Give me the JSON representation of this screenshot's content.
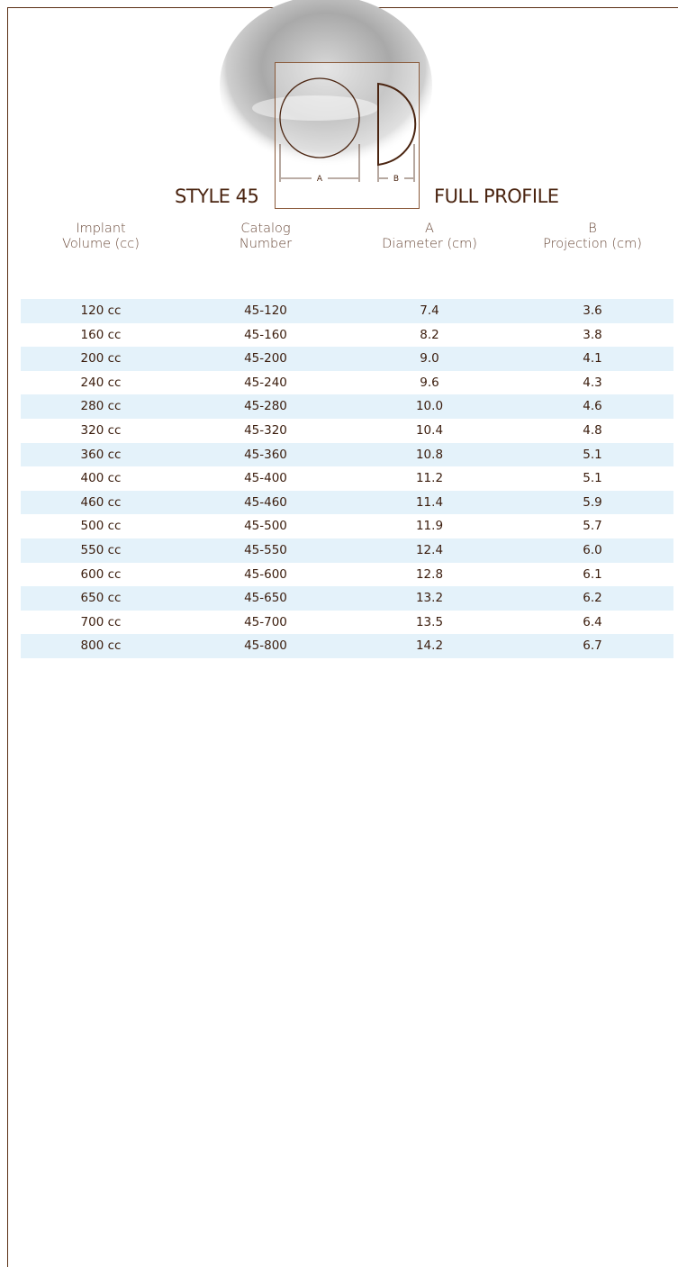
{
  "header": {
    "diagram_label_a": "A",
    "diagram_label_b": "B",
    "style": "STYLE 45",
    "profile": "FULL PROFILE"
  },
  "table": {
    "columns": [
      [
        "Implant",
        "Volume (cc)"
      ],
      [
        "Catalog",
        "Number"
      ],
      [
        "A",
        "Diameter (cm)"
      ],
      [
        "B",
        "Projection (cm)"
      ]
    ],
    "rows": [
      [
        "120 cc",
        "45-120",
        "7.4",
        "3.6"
      ],
      [
        "160 cc",
        "45-160",
        "8.2",
        "3.8"
      ],
      [
        "200 cc",
        "45-200",
        "9.0",
        "4.1"
      ],
      [
        "240 cc",
        "45-240",
        "9.6",
        "4.3"
      ],
      [
        "280 cc",
        "45-280",
        "10.0",
        "4.6"
      ],
      [
        "320 cc",
        "45-320",
        "10.4",
        "4.8"
      ],
      [
        "360 cc",
        "45-360",
        "10.8",
        "5.1"
      ],
      [
        "400 cc",
        "45-400",
        "11.2",
        "5.1"
      ],
      [
        "460 cc",
        "45-460",
        "11.4",
        "5.9"
      ],
      [
        "500 cc",
        "45-500",
        "11.9",
        "5.7"
      ],
      [
        "550 cc",
        "45-550",
        "12.4",
        "6.0"
      ],
      [
        "600 cc",
        "45-600",
        "12.8",
        "6.1"
      ],
      [
        "650 cc",
        "45-650",
        "13.2",
        "6.2"
      ],
      [
        "700 cc",
        "45-700",
        "13.5",
        "6.4"
      ],
      [
        "800 cc",
        "45-800",
        "14.2",
        "6.7"
      ]
    ]
  }
}
